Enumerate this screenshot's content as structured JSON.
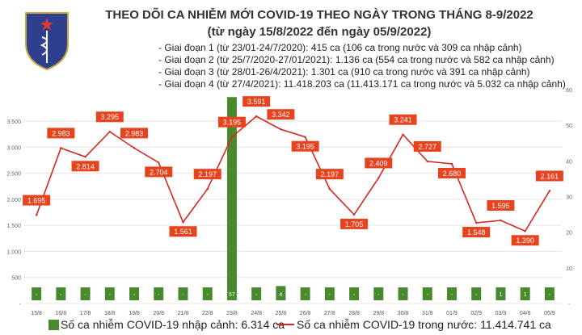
{
  "header": {
    "title": "THEO DÕI CA NHIỄM MỚI COVID-19 THEO NGÀY TRONG THÁNG 8-9/2022",
    "subtitle": "(từ ngày 15/8/2022 đến ngày 05/9/2022)",
    "phases": [
      "- Giai đoạn 1 (từ 23/01-24/7/2020): 415 ca (106 ca trong nước và 309 ca nhập cảnh)",
      "- Giai đoạn 2 (từ 25/7/2020-27/01/2021): 1.136 ca (554 ca trong nước và 582 ca nhập cảnh)",
      "- Giai đoạn 3 (từ 28/01-26/4/2021): 1.301 ca (910 ca trong nước và 391 ca nhập cảnh)",
      "- Giai đoạn 4 (từ 27/4/2021): 11.418.203 ca (11.413.171 ca trong nước và 5.032 ca nhập cảnh)"
    ],
    "logo_text": "BỘ Y TẾ MINISTRY OF HEALTH"
  },
  "chart_data": {
    "type": "bar+line",
    "categories": [
      "15/8",
      "16/8",
      "17/8",
      "18/8",
      "19/8",
      "20/8",
      "21/8",
      "22/8",
      "23/8",
      "24/8",
      "25/8",
      "26/8",
      "27/8",
      "28/8",
      "29/8",
      "30/8",
      "31/8",
      "01/9",
      "02/9",
      "03/9",
      "04/9",
      "05/9"
    ],
    "series": [
      {
        "name": "Số ca nhiễm COVID-19 nhập cảnh: 6.314 ca",
        "type": "bar",
        "axis": "right",
        "color": "#4a8a2e",
        "values": [
          0,
          0,
          0,
          0,
          0,
          0,
          0,
          0,
          57,
          0,
          4,
          0,
          0,
          0,
          0,
          0,
          0,
          0,
          0,
          1,
          1,
          0
        ],
        "labels": [
          "-",
          "-",
          "-",
          "-",
          "-",
          "-",
          "-",
          "-",
          "57",
          "-",
          "4",
          "-",
          "-",
          "-",
          "-",
          "-",
          "-",
          "-",
          "-",
          "1",
          "1",
          "-"
        ]
      },
      {
        "name": "Số ca nhiễm COVID-19 trong nước: 11.414.741 ca",
        "type": "line",
        "axis": "left",
        "color": "#d7261e",
        "values": [
          1695,
          2983,
          2814,
          3295,
          2983,
          2704,
          1561,
          2197,
          3195,
          3591,
          3342,
          3195,
          2197,
          1705,
          2409,
          3241,
          2727,
          2680,
          1548,
          1595,
          1390,
          2161
        ],
        "labels": [
          "1.695",
          "2.983",
          "2.814",
          "3.295",
          "2.983",
          "2.704",
          "1.561",
          "2.197",
          "3.195",
          "3.591",
          "3.342",
          "3.195",
          "2.197",
          "1.705",
          "2.409",
          "3.241",
          "2.727",
          "2.680",
          "1.548",
          "1.595",
          "1.390",
          "2.161"
        ]
      }
    ],
    "left_axis": {
      "range": [
        0,
        3500
      ],
      "ticks": [
        "-",
        "500",
        "1.000",
        "1.500",
        "2.000",
        "2.500",
        "3.000",
        "3.500"
      ]
    },
    "right_axis": {
      "range": [
        0,
        60
      ],
      "ticks": [
        "-",
        "10",
        "20",
        "30",
        "40",
        "50",
        "60"
      ]
    },
    "grid": true,
    "legend": "bottom"
  }
}
